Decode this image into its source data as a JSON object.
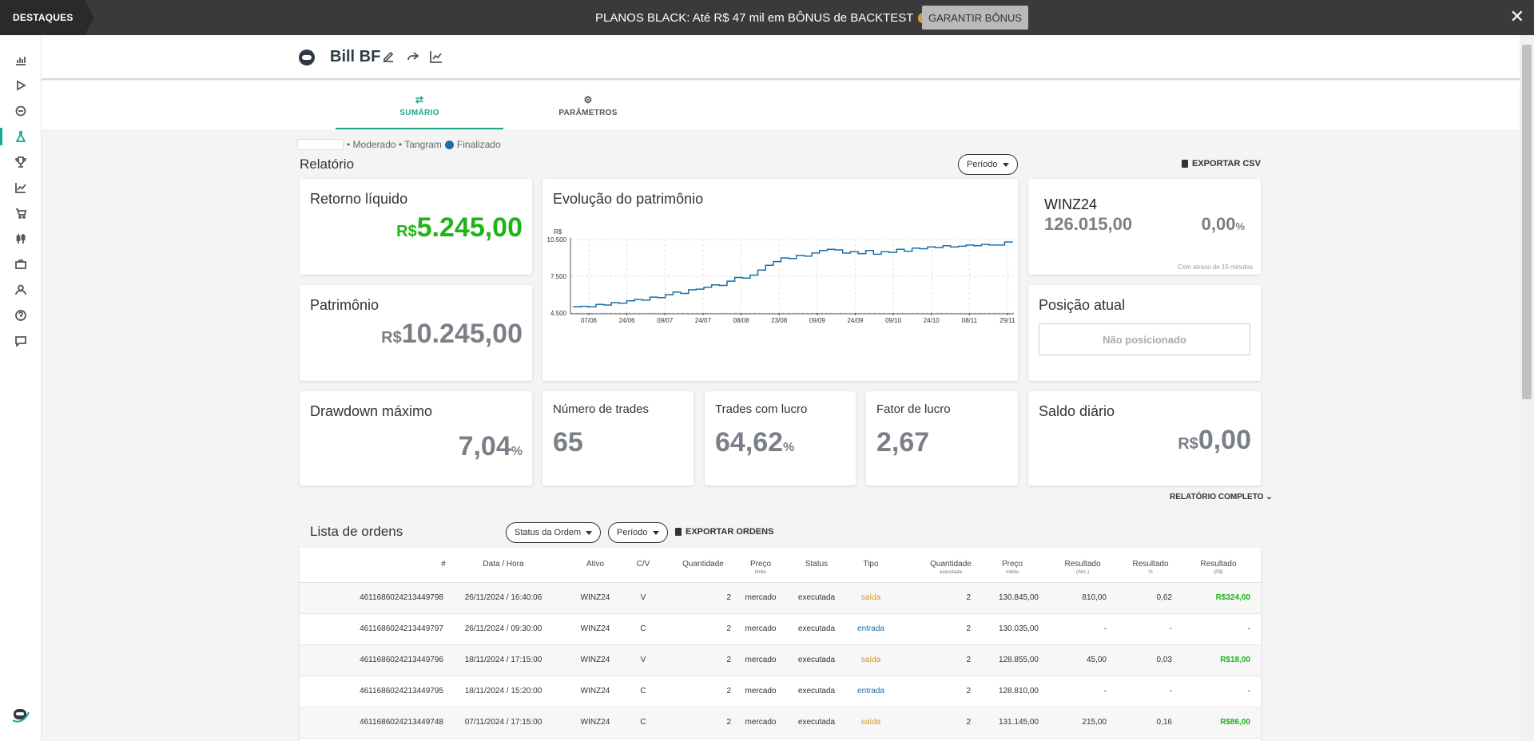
{
  "banner": {
    "tag": "DESTAQUES",
    "message": "PLANOS BLACK: Até R$ 47 mil em BÔNUS de BACKTEST",
    "cta": "GARANTIR BÔNUS",
    "close": "✕"
  },
  "header": {
    "bot_name": "Bill BF"
  },
  "tabs": [
    {
      "label": "SUMÁRIO",
      "icon": "⇄"
    },
    {
      "label": "PARÂMETROS",
      "icon": "⚙"
    }
  ],
  "meta": {
    "profile": "• Moderado • Tangram",
    "status": "Finalizado"
  },
  "relatorio": {
    "title": "Relatório",
    "period_label": "Período",
    "export_csv": "EXPORTAR CSV",
    "full_report": "RELATÓRIO COMPLETO"
  },
  "cards": {
    "retorno": {
      "label": "Retorno líquido",
      "currency": "R$",
      "value": "5.245,00"
    },
    "patrimonio": {
      "label": "Patrimônio",
      "currency": "R$",
      "value": "10.245,00"
    },
    "drawdown": {
      "label": "Drawdown máximo",
      "value": "7,04",
      "unit": "%"
    },
    "num_trades": {
      "label": "Número de trades",
      "value": "65"
    },
    "trades_lucro": {
      "label": "Trades com lucro",
      "value": "64,62",
      "unit": "%"
    },
    "fator_lucro": {
      "label": "Fator de lucro",
      "value": "2,67"
    },
    "saldo_diario": {
      "label": "Saldo diário",
      "currency": "R$",
      "value": "0,00"
    },
    "posicao": {
      "label": "Posição atual",
      "value": "Não posicionado"
    },
    "ticker": {
      "symbol": "WINZ24",
      "price": "126.015,00",
      "change": "0,00",
      "unit": "%",
      "delay_note": "Com atraso de 15 minutos"
    }
  },
  "chart_data": {
    "type": "line",
    "title": "Evolução do patrimônio",
    "ylabel": "R$",
    "ylim": [
      4500,
      10500
    ],
    "yticks": [
      "4.500",
      "7.500",
      "10.500"
    ],
    "x_ticks": [
      "07/06",
      "24/06",
      "09/07",
      "24/07",
      "08/08",
      "23/08",
      "09/09",
      "24/09",
      "09/10",
      "24/10",
      "08/11",
      "29/11"
    ],
    "series": [
      {
        "color": "#1b6fa8",
        "values": [
          5000,
          5050,
          5000,
          5200,
          5150,
          5350,
          5300,
          5500,
          5600,
          5550,
          5800,
          5750,
          6000,
          6200,
          6100,
          6400,
          6450,
          6600,
          6800,
          6750,
          7100,
          7400,
          7350,
          7600,
          8000,
          8400,
          8700,
          9000,
          8950,
          9200,
          9150,
          9400,
          9600,
          9700,
          9650,
          9400,
          9500,
          9350,
          9600,
          9300,
          9500,
          9450,
          9700,
          9550,
          9800,
          9750,
          9900,
          9850,
          10000,
          9900,
          9950,
          10050,
          10000,
          10100,
          10050,
          10050,
          10300,
          10245
        ]
      }
    ]
  },
  "orders": {
    "title": "Lista de ordens",
    "filter_status": "Status da Ordem",
    "filter_period": "Período",
    "export": "EXPORTAR ORDENS",
    "columns": [
      {
        "label": "#",
        "sub": ""
      },
      {
        "label": "Data / Hora",
        "sub": ""
      },
      {
        "label": "Ativo",
        "sub": ""
      },
      {
        "label": "C/V",
        "sub": ""
      },
      {
        "label": "Quantidade",
        "sub": ""
      },
      {
        "label": "Preço",
        "sub": "limite"
      },
      {
        "label": "Status",
        "sub": ""
      },
      {
        "label": "Tipo",
        "sub": ""
      },
      {
        "label": "Quantidade",
        "sub": "executada"
      },
      {
        "label": "Preço",
        "sub": "médio"
      },
      {
        "label": "Resultado",
        "sub": "(Abs.)"
      },
      {
        "label": "Resultado",
        "sub": "%"
      },
      {
        "label": "Resultado",
        "sub": "(R$)"
      }
    ],
    "rows": [
      {
        "id": "4611686024213449798",
        "datetime": "26/11/2024 / 16:40:06",
        "asset": "WINZ24",
        "cv": "V",
        "qty": "2",
        "price_limit": "mercado",
        "status": "executada",
        "type": "saída",
        "qty_exec": "2",
        "avg_price": "130.845,00",
        "res_abs": "810,00",
        "res_pct": "0,62",
        "res_brl": "R$324,00"
      },
      {
        "id": "4611686024213449797",
        "datetime": "26/11/2024 / 09:30:00",
        "asset": "WINZ24",
        "cv": "C",
        "qty": "2",
        "price_limit": "mercado",
        "status": "executada",
        "type": "entrada",
        "qty_exec": "2",
        "avg_price": "130.035,00",
        "res_abs": "-",
        "res_pct": "-",
        "res_brl": "-"
      },
      {
        "id": "4611686024213449796",
        "datetime": "18/11/2024 / 17:15:00",
        "asset": "WINZ24",
        "cv": "V",
        "qty": "2",
        "price_limit": "mercado",
        "status": "executada",
        "type": "saída",
        "qty_exec": "2",
        "avg_price": "128.855,00",
        "res_abs": "45,00",
        "res_pct": "0,03",
        "res_brl": "R$18,00"
      },
      {
        "id": "4611686024213449795",
        "datetime": "18/11/2024 / 15:20:00",
        "asset": "WINZ24",
        "cv": "C",
        "qty": "2",
        "price_limit": "mercado",
        "status": "executada",
        "type": "entrada",
        "qty_exec": "2",
        "avg_price": "128.810,00",
        "res_abs": "-",
        "res_pct": "-",
        "res_brl": "-"
      },
      {
        "id": "4611686024213449748",
        "datetime": "07/11/2024 / 17:15:00",
        "asset": "WINZ24",
        "cv": "C",
        "qty": "2",
        "price_limit": "mercado",
        "status": "executada",
        "type": "saída",
        "qty_exec": "2",
        "avg_price": "131.145,00",
        "res_abs": "215,00",
        "res_pct": "0,16",
        "res_brl": "R$86,00"
      }
    ]
  },
  "colors": {
    "accent": "#18a98c",
    "positive": "#1fb316",
    "exit": "#d9961e",
    "entry": "#1b6fa8",
    "value_gray": "#7b7f88"
  },
  "sidebar_icons": [
    "bar-chart-icon",
    "play-icon",
    "bot-icon",
    "flask-icon",
    "trophy-icon",
    "line-chart-icon",
    "cart-icon",
    "candles-icon",
    "briefcase-icon",
    "user-icon",
    "help-icon",
    "chat-icon"
  ]
}
